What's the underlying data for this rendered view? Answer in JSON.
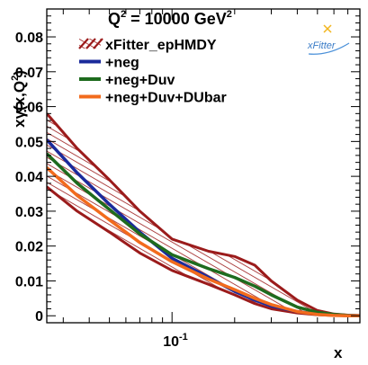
{
  "chart_data": {
    "type": "line",
    "title_html": "Q² = 10000 GeV²",
    "title": {
      "main": "Q",
      "sup1": "2",
      "mid": " = 10000 GeV",
      "sup2": "2"
    },
    "ylabel": {
      "a": "xγ(x,Q",
      "sup": "2",
      "b": ")"
    },
    "xlabel": "x",
    "xscale": "log",
    "xlim": [
      0.025,
      0.8
    ],
    "ylim": [
      -0.002,
      0.088
    ],
    "x_ticks": [
      {
        "value": 0.1,
        "label_base": "10",
        "label_exp": "-1"
      }
    ],
    "y_ticks": [
      {
        "value": 0,
        "label": "0"
      },
      {
        "value": 0.01,
        "label": "0.01"
      },
      {
        "value": 0.02,
        "label": "0.02"
      },
      {
        "value": 0.03,
        "label": "0.03"
      },
      {
        "value": 0.04,
        "label": "0.04"
      },
      {
        "value": 0.05,
        "label": "0.05"
      },
      {
        "value": 0.06,
        "label": "0.06"
      },
      {
        "value": 0.07,
        "label": "0.07"
      },
      {
        "value": 0.08,
        "label": "0.08"
      }
    ],
    "logo": "xFitter",
    "series": [
      {
        "name": "xFitter_epHMDY",
        "color": "#9b1b1b",
        "style": "hatched-band",
        "x": [
          0.025,
          0.035,
          0.05,
          0.07,
          0.1,
          0.15,
          0.2,
          0.25,
          0.3,
          0.4,
          0.5,
          0.6,
          0.7,
          0.8
        ],
        "lower": [
          0.037,
          0.03,
          0.024,
          0.018,
          0.013,
          0.009,
          0.006,
          0.0035,
          0.002,
          0.0008,
          0.0003,
          0.0001,
          0.0,
          0.0
        ],
        "upper": [
          0.058,
          0.048,
          0.039,
          0.03,
          0.022,
          0.0185,
          0.017,
          0.0145,
          0.01,
          0.0045,
          0.0015,
          0.0005,
          0.0002,
          0.0001
        ]
      },
      {
        "name": "+neg",
        "color": "#1b2a9b",
        "style": "line",
        "x": [
          0.025,
          0.035,
          0.05,
          0.07,
          0.1,
          0.15,
          0.2,
          0.25,
          0.3,
          0.4,
          0.5,
          0.6,
          0.7,
          0.8
        ],
        "values": [
          0.0505,
          0.041,
          0.032,
          0.024,
          0.0165,
          0.011,
          0.007,
          0.0045,
          0.0028,
          0.0012,
          0.0005,
          0.0002,
          0.0001,
          0.0
        ]
      },
      {
        "name": "+neg+Duv",
        "color": "#1e6b1e",
        "style": "line",
        "x": [
          0.025,
          0.035,
          0.05,
          0.07,
          0.1,
          0.15,
          0.2,
          0.25,
          0.3,
          0.4,
          0.5,
          0.6,
          0.7,
          0.8
        ],
        "values": [
          0.0465,
          0.038,
          0.0305,
          0.0235,
          0.0175,
          0.0135,
          0.011,
          0.0085,
          0.006,
          0.0025,
          0.001,
          0.0004,
          0.0001,
          0.0
        ]
      },
      {
        "name": "+neg+Duv+DUbar",
        "color": "#f26b1d",
        "style": "line",
        "x": [
          0.025,
          0.035,
          0.05,
          0.07,
          0.1,
          0.15,
          0.2,
          0.25,
          0.3,
          0.4,
          0.5,
          0.6,
          0.7,
          0.8
        ],
        "values": [
          0.0425,
          0.0345,
          0.0275,
          0.021,
          0.0155,
          0.0105,
          0.0075,
          0.005,
          0.0032,
          0.0012,
          0.0004,
          0.0001,
          0.0,
          0.0
        ]
      }
    ]
  }
}
